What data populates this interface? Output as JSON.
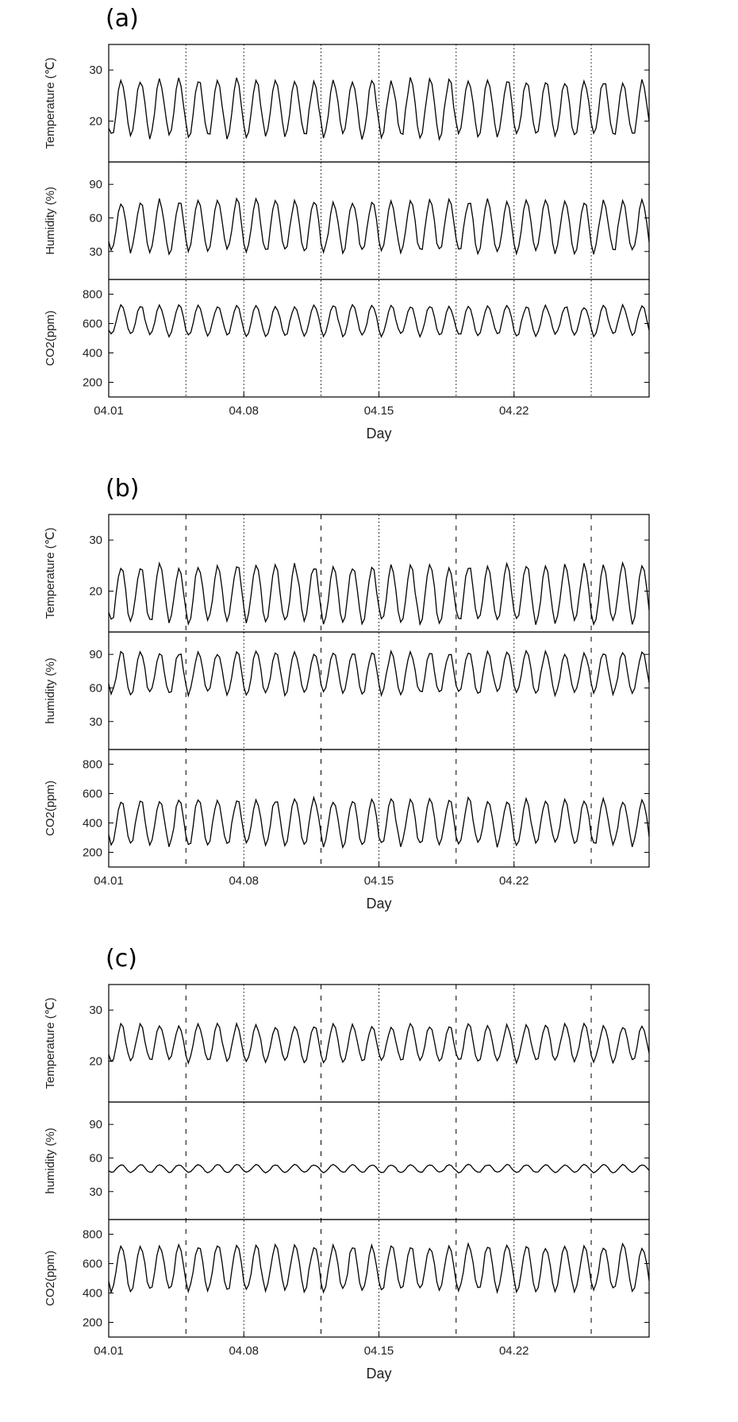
{
  "figure": {
    "panels": [
      {
        "label": "(a)",
        "xlabel": "Day"
      },
      {
        "label": "(b)",
        "xlabel": "Day"
      },
      {
        "label": "(c)",
        "xlabel": "Day"
      }
    ]
  },
  "chart_data": [
    {
      "type": "line",
      "panel": "(a)",
      "xlabel": "Day",
      "xticks": [
        "04.01",
        "04.08",
        "04.15",
        "04.22"
      ],
      "xlim": [
        "04.01",
        "04.29"
      ],
      "vlines_dotted": [
        "04.05",
        "04.08",
        "04.12",
        "04.15",
        "04.19",
        "04.22",
        "04.26"
      ],
      "subplots": [
        {
          "ylabel": "Temperature (℃)",
          "ylim": [
            12,
            35
          ],
          "yticks": [
            20,
            30
          ],
          "series": [
            {
              "daily_min_approx": 17,
              "daily_max_approx": 28,
              "points_per_day": 8
            }
          ]
        },
        {
          "ylabel": "Humidity (%)",
          "ylim": [
            5,
            110
          ],
          "yticks": [
            30,
            60,
            90
          ],
          "series": [
            {
              "daily_min_approx": 30,
              "daily_max_approx": 75,
              "points_per_day": 8
            }
          ]
        },
        {
          "ylabel": "CO2(ppm)",
          "ylim": [
            100,
            900
          ],
          "yticks": [
            200,
            400,
            600,
            800
          ],
          "series": [
            {
              "daily_min_approx": 520,
              "daily_max_approx": 720,
              "points_per_day": 8
            }
          ]
        }
      ]
    },
    {
      "type": "line",
      "panel": "(b)",
      "xlabel": "Day",
      "xticks": [
        "04.01",
        "04.08",
        "04.15",
        "04.22"
      ],
      "xlim": [
        "04.01",
        "04.29"
      ],
      "vlines_dashed": [
        "04.05",
        "04.12",
        "04.19",
        "04.26"
      ],
      "vlines_dotted": [
        "04.08",
        "04.15",
        "04.22"
      ],
      "subplots": [
        {
          "ylabel": "Temperature (℃)",
          "ylim": [
            12,
            35
          ],
          "yticks": [
            20,
            30
          ],
          "series": [
            {
              "daily_min_approx": 14,
              "daily_max_approx": 25,
              "points_per_day": 8
            }
          ]
        },
        {
          "ylabel": "humidity (%)",
          "ylim": [
            5,
            110
          ],
          "yticks": [
            30,
            60,
            90
          ],
          "series": [
            {
              "daily_min_approx": 55,
              "daily_max_approx": 92,
              "points_per_day": 8
            }
          ]
        },
        {
          "ylabel": "CO2(ppm)",
          "ylim": [
            100,
            900
          ],
          "yticks": [
            200,
            400,
            600,
            800
          ],
          "series": [
            {
              "daily_min_approx": 250,
              "daily_max_approx": 560,
              "points_per_day": 8
            }
          ]
        }
      ]
    },
    {
      "type": "line",
      "panel": "(c)",
      "xlabel": "Day",
      "xticks": [
        "04.01",
        "04.08",
        "04.15",
        "04.22"
      ],
      "xlim": [
        "04.01",
        "04.29"
      ],
      "vlines_dashed": [
        "04.05",
        "04.12",
        "04.19",
        "04.26"
      ],
      "vlines_dotted": [
        "04.08",
        "04.15",
        "04.22"
      ],
      "subplots": [
        {
          "ylabel": "Temperature (℃)",
          "ylim": [
            12,
            35
          ],
          "yticks": [
            20,
            30
          ],
          "series": [
            {
              "daily_min_approx": 20,
              "daily_max_approx": 27,
              "points_per_day": 8
            }
          ]
        },
        {
          "ylabel": "humidity (%)",
          "ylim": [
            5,
            110
          ],
          "yticks": [
            30,
            60,
            90
          ],
          "series": [
            {
              "daily_min_approx": 47,
              "daily_max_approx": 54,
              "points_per_day": 8
            }
          ]
        },
        {
          "ylabel": "CO2(ppm)",
          "ylim": [
            100,
            900
          ],
          "yticks": [
            200,
            400,
            600,
            800
          ],
          "series": [
            {
              "daily_min_approx": 420,
              "daily_max_approx": 720,
              "points_per_day": 8
            }
          ]
        }
      ]
    }
  ]
}
